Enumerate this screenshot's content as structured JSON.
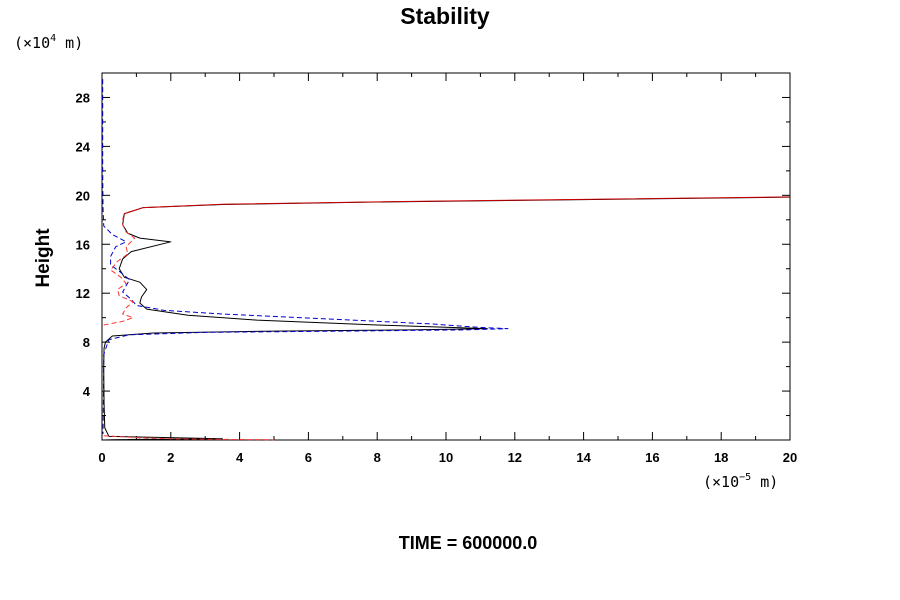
{
  "chart_data": {
    "type": "line",
    "title": "Stability",
    "ylabel": "Height",
    "xlabel": "",
    "y_unit": {
      "prefix": "(×10",
      "exp": "4",
      "suffix": " m)"
    },
    "x_unit": {
      "prefix": "(×10",
      "exp": "−5",
      "suffix": " m)"
    },
    "xlim": [
      0,
      20
    ],
    "ylim": [
      0,
      30
    ],
    "x_ticks": [
      0,
      2,
      4,
      6,
      8,
      10,
      12,
      14,
      16,
      18,
      20
    ],
    "y_ticks": [
      4,
      8,
      12,
      16,
      20,
      24,
      28
    ],
    "x_tick_labels": [
      "0",
      "2",
      "4",
      "6",
      "8",
      "10",
      "12",
      "14",
      "16",
      "18",
      "20"
    ],
    "y_tick_labels": [
      "4",
      "8",
      "12",
      "16",
      "20",
      "24",
      "28"
    ],
    "grid": false,
    "legend": "none",
    "footer": "TIME = 600000.0",
    "series": [
      {
        "color": "#000000",
        "dash": "solid",
        "points": [
          [
            0.05,
            0.0
          ],
          [
            0.3,
            0.02
          ],
          [
            1.0,
            0.05
          ],
          [
            2.5,
            0.08
          ],
          [
            3.5,
            0.1
          ],
          [
            0.2,
            0.3
          ],
          [
            0.08,
            1.0
          ],
          [
            0.06,
            3.0
          ],
          [
            0.05,
            6.0
          ],
          [
            0.06,
            7.5
          ],
          [
            0.1,
            8.0
          ],
          [
            0.3,
            8.5
          ],
          [
            1.5,
            8.75
          ],
          [
            5.0,
            8.9
          ],
          [
            9.0,
            9.0
          ],
          [
            11.2,
            9.1
          ],
          [
            8.0,
            9.4
          ],
          [
            4.5,
            9.8
          ],
          [
            2.5,
            10.2
          ],
          [
            1.3,
            10.7
          ],
          [
            1.1,
            11.2
          ],
          [
            1.15,
            11.7
          ],
          [
            1.3,
            12.3
          ],
          [
            1.1,
            12.9
          ],
          [
            0.65,
            13.3
          ],
          [
            0.5,
            14.0
          ],
          [
            0.6,
            14.8
          ],
          [
            0.85,
            15.4
          ],
          [
            2.0,
            16.2
          ],
          [
            1.1,
            16.5
          ],
          [
            0.75,
            16.9
          ],
          [
            0.6,
            17.6
          ],
          [
            0.65,
            18.5
          ],
          [
            1.2,
            19.0
          ],
          [
            3.5,
            19.25
          ],
          [
            8.0,
            19.45
          ],
          [
            14.0,
            19.65
          ],
          [
            20.0,
            19.85
          ]
        ]
      },
      {
        "color": "#cc0000",
        "dash": "solid",
        "points": [
          [
            0.6,
            18.0
          ],
          [
            0.65,
            18.5
          ],
          [
            1.2,
            19.0
          ],
          [
            3.5,
            19.27
          ],
          [
            8.0,
            19.47
          ],
          [
            14.0,
            19.67
          ],
          [
            20.0,
            19.87
          ]
        ]
      },
      {
        "color": "#0000cc",
        "dash": "dashed",
        "points": [
          [
            0.02,
            29.5
          ],
          [
            0.02,
            27.0
          ],
          [
            0.02,
            22.0
          ],
          [
            0.03,
            19.0
          ],
          [
            0.05,
            17.5
          ],
          [
            0.3,
            16.8
          ],
          [
            0.7,
            16.2
          ],
          [
            0.4,
            15.8
          ],
          [
            0.25,
            15.0
          ],
          [
            0.25,
            14.3
          ],
          [
            0.5,
            13.8
          ],
          [
            0.8,
            13.1
          ],
          [
            0.7,
            12.6
          ],
          [
            0.6,
            12.1
          ],
          [
            0.85,
            11.5
          ],
          [
            1.0,
            11.0
          ],
          [
            1.8,
            10.6
          ],
          [
            3.5,
            10.3
          ],
          [
            6.5,
            9.9
          ],
          [
            9.5,
            9.5
          ],
          [
            11.0,
            9.2
          ],
          [
            11.8,
            9.1
          ],
          [
            10.5,
            9.0
          ],
          [
            7.0,
            8.9
          ],
          [
            3.0,
            8.8
          ],
          [
            0.8,
            8.6
          ],
          [
            0.2,
            8.2
          ],
          [
            0.05,
            7.0
          ],
          [
            0.04,
            3.0
          ],
          [
            0.03,
            0.5
          ]
        ]
      },
      {
        "color": "#ff3333",
        "dash": "dashed",
        "points": [
          [
            0.05,
            9.4
          ],
          [
            0.6,
            9.7
          ],
          [
            0.9,
            10.0
          ],
          [
            0.6,
            10.3
          ],
          [
            0.7,
            10.8
          ],
          [
            0.9,
            11.3
          ],
          [
            0.5,
            11.8
          ],
          [
            0.45,
            12.3
          ],
          [
            0.7,
            12.8
          ],
          [
            0.55,
            13.3
          ],
          [
            0.25,
            13.9
          ],
          [
            0.45,
            14.6
          ],
          [
            0.75,
            15.2
          ],
          [
            0.7,
            15.8
          ],
          [
            0.95,
            16.5
          ],
          [
            0.7,
            17.0
          ],
          [
            0.6,
            17.6
          ],
          [
            0.62,
            18.2
          ]
        ]
      },
      {
        "color": "#ff3333",
        "dash": "dashed",
        "points": [
          [
            0.05,
            0.35
          ],
          [
            1.0,
            0.2
          ],
          [
            2.0,
            0.1
          ],
          [
            3.5,
            0.05
          ],
          [
            5.0,
            0.02
          ]
        ]
      }
    ]
  }
}
